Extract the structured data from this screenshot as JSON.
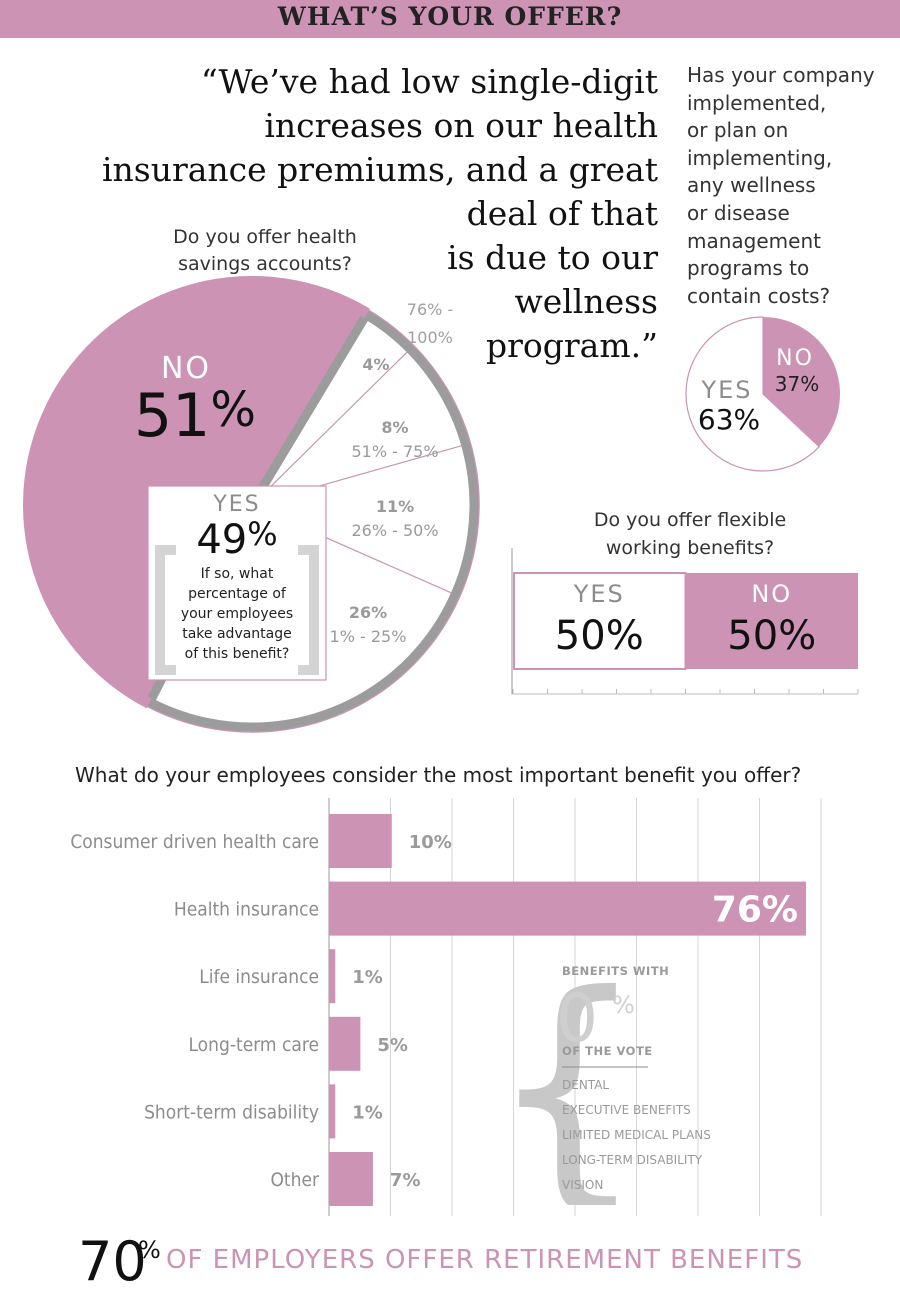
{
  "header": {
    "title": "WHAT’S YOUR OFFER?"
  },
  "quote": {
    "lines": [
      "“We’ve had low single-digit",
      "increases on our health",
      "insurance premiums, and a great",
      "deal of that",
      "is due to our",
      "wellness",
      "program.”"
    ]
  },
  "colors": {
    "accent": "#cc93b4",
    "gray": "#a6a6a6",
    "dark_gray": "#8c8c8c",
    "light_gray": "#d4d4d4"
  },
  "wellness": {
    "question_lines": [
      "Has your company",
      "implemented,",
      "or plan on",
      "implementing,",
      "any wellness",
      "or disease",
      "management",
      "programs to",
      "contain costs?"
    ],
    "chart_data": {
      "type": "pie",
      "slices": [
        {
          "label": "NO",
          "value": 37,
          "display": "37%"
        },
        {
          "label": "YES",
          "value": 63,
          "display": "63%"
        }
      ]
    }
  },
  "hsa": {
    "question_lines": [
      "Do you offer health",
      "savings accounts?"
    ],
    "no_label": "NO",
    "no_value": "51",
    "yes_label": "YES",
    "yes_value": "49",
    "pct_sign": "%",
    "follow_up_lines": [
      "If so, what",
      "percentage of",
      "your employees",
      "take advantage",
      "of this benefit?"
    ],
    "chart_data": {
      "type": "pie",
      "slices": [
        {
          "label": "NO",
          "value": 51
        },
        {
          "label": "YES",
          "value": 49
        }
      ],
      "yes_breakdown": [
        {
          "range_lines": [
            "76% -",
            "100%"
          ],
          "value": 4,
          "display": "4%"
        },
        {
          "range_lines": [
            "51% - 75%"
          ],
          "value": 8,
          "display": "8%"
        },
        {
          "range_lines": [
            "26% - 50%"
          ],
          "value": 11,
          "display": "11%"
        },
        {
          "range_lines": [
            "1% - 25%"
          ],
          "value": 26,
          "display": "26%"
        }
      ]
    }
  },
  "flex": {
    "question_lines": [
      "Do you offer flexible",
      "working benefits?"
    ],
    "chart_data": {
      "type": "bar",
      "segments": [
        {
          "label": "YES",
          "value": 50,
          "display": "50%"
        },
        {
          "label": "NO",
          "value": 50,
          "display": "50%"
        }
      ]
    }
  },
  "benefits": {
    "question": "What do your employees consider the most important benefit you offer?",
    "chart_data": {
      "type": "bar",
      "orientation": "horizontal",
      "categories": [
        "Consumer driven health care",
        "Health insurance",
        "Life insurance",
        "Long-term care",
        "Short-term disability",
        "Other"
      ],
      "values": [
        10,
        76,
        1,
        5,
        1,
        7
      ],
      "value_labels": [
        "10%",
        "76%",
        "1%",
        "5%",
        "1%",
        "7%"
      ],
      "xlim": [
        0,
        78
      ]
    },
    "zero_vote": {
      "title_top": "BENEFITS WITH",
      "number": "0",
      "pct": "%",
      "title_bottom": "OF THE VOTE",
      "items": [
        "DENTAL",
        "EXECUTIVE BENEFITS",
        "LIMITED MEDICAL PLANS",
        "LONG-TERM DISABILITY",
        "VISION"
      ]
    }
  },
  "footer": {
    "number": "70",
    "pct": "%",
    "text": "OF EMPLOYERS OFFER RETIREMENT BENEFITS"
  }
}
